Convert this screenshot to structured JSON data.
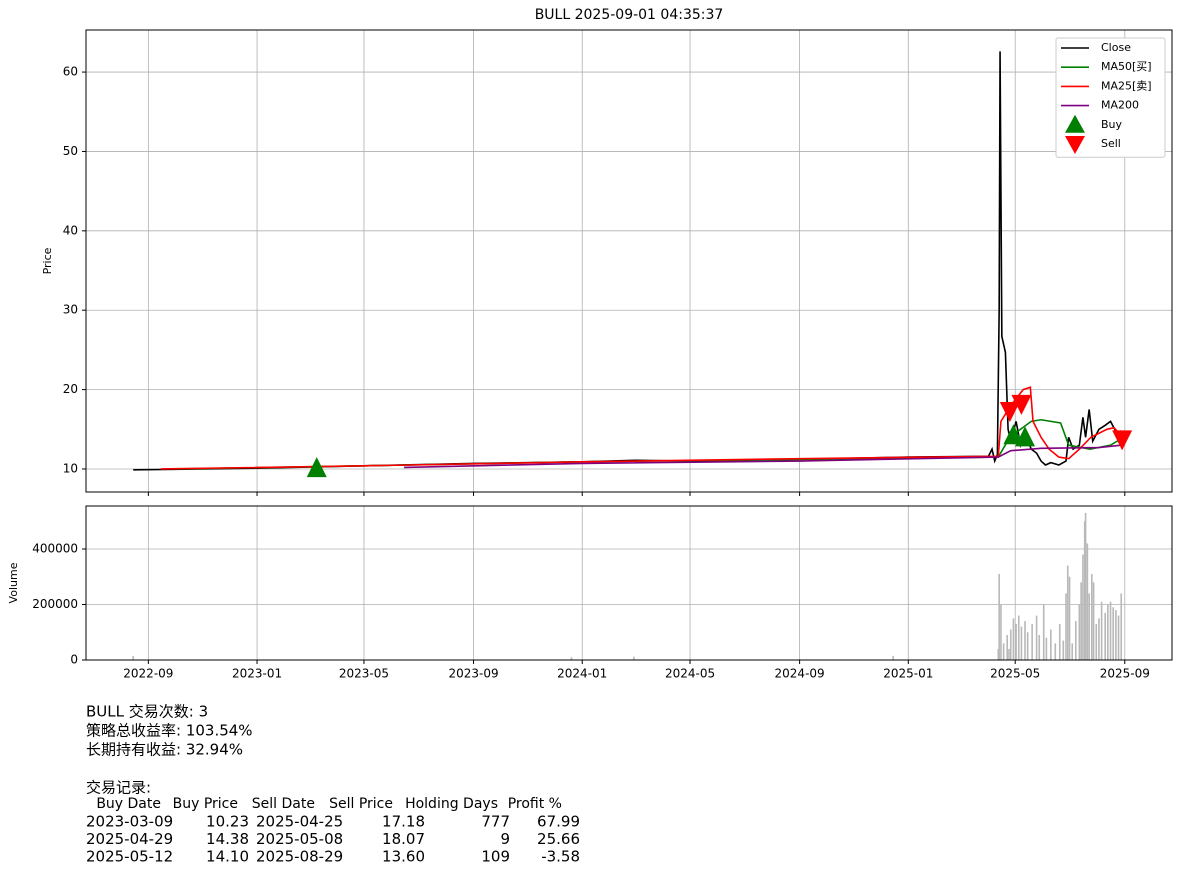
{
  "chart_data": [
    {
      "type": "line",
      "title": "BULL 2025-09-01 04:35:37",
      "ylabel": "Price",
      "ylim": [
        7.1,
        65.3
      ],
      "yticks": [
        10,
        20,
        30,
        40,
        50,
        60
      ],
      "grid": true,
      "legend": "upper right",
      "series": [
        {
          "name": "Close",
          "color": "#000000",
          "x": [
            "2022-08-15",
            "2022-10-01",
            "2023-01-01",
            "2023-05-01",
            "2023-09-01",
            "2024-01-01",
            "2024-03-01",
            "2024-05-01",
            "2024-09-01",
            "2025-01-01",
            "2025-04-01",
            "2025-04-05",
            "2025-04-08",
            "2025-04-11",
            "2025-04-13",
            "2025-04-14",
            "2025-04-16",
            "2025-04-20",
            "2025-04-23",
            "2025-04-26",
            "2025-05-02",
            "2025-05-07",
            "2025-05-12",
            "2025-05-19",
            "2025-05-25",
            "2025-05-30",
            "2025-06-04",
            "2025-06-10",
            "2025-06-19",
            "2025-06-27",
            "2025-06-30",
            "2025-07-05",
            "2025-07-12",
            "2025-07-16",
            "2025-07-19",
            "2025-07-23",
            "2025-07-27",
            "2025-08-03",
            "2025-08-10",
            "2025-08-16",
            "2025-08-23",
            "2025-08-28"
          ],
          "values": [
            9.9,
            9.95,
            10.1,
            10.4,
            10.7,
            10.9,
            11.1,
            11.0,
            11.2,
            11.5,
            11.6,
            12.5,
            11.0,
            11.8,
            30,
            62.6,
            26.7,
            24.7,
            15,
            13.5,
            16,
            13,
            14.5,
            12.5,
            12,
            11,
            10.5,
            10.8,
            10.5,
            11,
            14,
            12.5,
            13,
            16.5,
            14,
            17.5,
            13.5,
            15,
            15.5,
            16,
            14.5,
            14.8
          ]
        },
        {
          "name": "MA50[买]",
          "color": "#008000",
          "x": [
            "2022-10-01",
            "2023-05-01",
            "2024-01-01",
            "2024-09-01",
            "2025-04-12",
            "2025-04-25",
            "2025-05-19",
            "2025-05-30",
            "2025-06-21",
            "2025-06-30",
            "2025-07-24",
            "2025-08-16",
            "2025-08-28"
          ],
          "values": [
            10,
            10.4,
            10.9,
            11.2,
            11.5,
            14,
            16,
            16.2,
            15.8,
            13,
            12.5,
            13,
            13.8
          ]
        },
        {
          "name": "MA25[卖]",
          "color": "#ff0000",
          "x": [
            "2022-09-15",
            "2023-05-01",
            "2024-01-01",
            "2024-09-01",
            "2025-04-12",
            "2025-04-15",
            "2025-04-26",
            "2025-05-10",
            "2025-05-18",
            "2025-05-21",
            "2025-05-30",
            "2025-06-08",
            "2025-06-19",
            "2025-06-30",
            "2025-07-12",
            "2025-07-25",
            "2025-08-12",
            "2025-08-20",
            "2025-08-28"
          ],
          "values": [
            10,
            10.4,
            10.9,
            11.3,
            11.6,
            16,
            18,
            20,
            20.3,
            16,
            14,
            12.5,
            11.5,
            11.3,
            12.5,
            14,
            15,
            15.2,
            14.2
          ]
        },
        {
          "name": "MA200",
          "color": "#800080",
          "x": [
            "2023-06-15",
            "2024-01-01",
            "2024-09-01",
            "2025-04-12",
            "2025-04-26",
            "2025-05-30",
            "2025-08-03",
            "2025-08-28"
          ],
          "values": [
            10.2,
            10.7,
            11.0,
            11.5,
            12.3,
            12.6,
            12.7,
            13
          ]
        },
        {
          "name": "Buy",
          "color": "#008000",
          "marker": "^",
          "x": [
            "2023-03-09",
            "2025-04-29",
            "2025-05-12"
          ],
          "values": [
            10.23,
            14.38,
            14.1
          ]
        },
        {
          "name": "Sell",
          "color": "#ff0000",
          "marker": "v",
          "x": [
            "2025-04-25",
            "2025-05-08",
            "2025-08-29"
          ],
          "values": [
            17.18,
            18.07,
            13.6
          ]
        }
      ]
    },
    {
      "type": "bar",
      "ylabel": "Volume",
      "color": "#b8b8b8",
      "xlim": [
        "2022-06-23",
        "2025-10-24"
      ],
      "xticks": [
        {
          "value": "2022-09-01",
          "label": "2022-09"
        },
        {
          "value": "2023-01-01",
          "label": "2023-01"
        },
        {
          "value": "2023-05-01",
          "label": "2023-05"
        },
        {
          "value": "2023-09-01",
          "label": "2023-09"
        },
        {
          "value": "2024-01-01",
          "label": "2024-01"
        },
        {
          "value": "2024-05-01",
          "label": "2024-05"
        },
        {
          "value": "2024-09-01",
          "label": "2024-09"
        },
        {
          "value": "2025-01-01",
          "label": "2025-01"
        },
        {
          "value": "2025-05-01",
          "label": "2025-05"
        },
        {
          "value": "2025-09-01",
          "label": "2025-09"
        }
      ],
      "ylim": [
        0,
        555000
      ],
      "yticks": [
        0,
        200000,
        400000
      ],
      "grid": true,
      "x": [
        "2022-08-15",
        "2023-12-20",
        "2024-02-28",
        "2024-12-15",
        "2025-04-12",
        "2025-04-13",
        "2025-04-15",
        "2025-04-18",
        "2025-04-22",
        "2025-04-24",
        "2025-04-26",
        "2025-04-29",
        "2025-05-02",
        "2025-05-05",
        "2025-05-08",
        "2025-05-12",
        "2025-05-15",
        "2025-05-20",
        "2025-05-25",
        "2025-05-28",
        "2025-06-02",
        "2025-06-05",
        "2025-06-10",
        "2025-06-15",
        "2025-06-20",
        "2025-06-24",
        "2025-06-27",
        "2025-06-29",
        "2025-07-01",
        "2025-07-04",
        "2025-07-08",
        "2025-07-12",
        "2025-07-14",
        "2025-07-16",
        "2025-07-18",
        "2025-07-19",
        "2025-07-21",
        "2025-07-23",
        "2025-07-26",
        "2025-07-28",
        "2025-07-31",
        "2025-08-03",
        "2025-08-06",
        "2025-08-10",
        "2025-08-13",
        "2025-08-16",
        "2025-08-19",
        "2025-08-22",
        "2025-08-25",
        "2025-08-28"
      ],
      "values": [
        14000,
        10000,
        12000,
        15000,
        40000,
        310000,
        200000,
        60000,
        90000,
        40000,
        110000,
        150000,
        130000,
        160000,
        120000,
        140000,
        100000,
        130000,
        160000,
        90000,
        200000,
        80000,
        110000,
        60000,
        130000,
        70000,
        240000,
        340000,
        300000,
        60000,
        140000,
        200000,
        280000,
        380000,
        500000,
        530000,
        420000,
        240000,
        310000,
        280000,
        130000,
        150000,
        210000,
        170000,
        200000,
        210000,
        190000,
        180000,
        160000,
        240000
      ]
    }
  ],
  "summary": [
    "BULL 交易次数: 3",
    "策略总收益率: 103.54%",
    "长期持有收益: 32.94%"
  ],
  "trade_log": {
    "title": "交易记录:",
    "columns": [
      "Buy Date",
      "Buy Price",
      "Sell Date",
      "Sell Price",
      "Holding Days",
      "Profit %"
    ],
    "rows": [
      [
        "2023-03-09",
        "10.23",
        "2025-04-25",
        "17.18",
        "777",
        "67.99"
      ],
      [
        "2025-04-29",
        "14.38",
        "2025-05-08",
        "18.07",
        "9",
        "25.66"
      ],
      [
        "2025-05-12",
        "14.10",
        "2025-08-29",
        "13.60",
        "109",
        "-3.58"
      ]
    ]
  }
}
